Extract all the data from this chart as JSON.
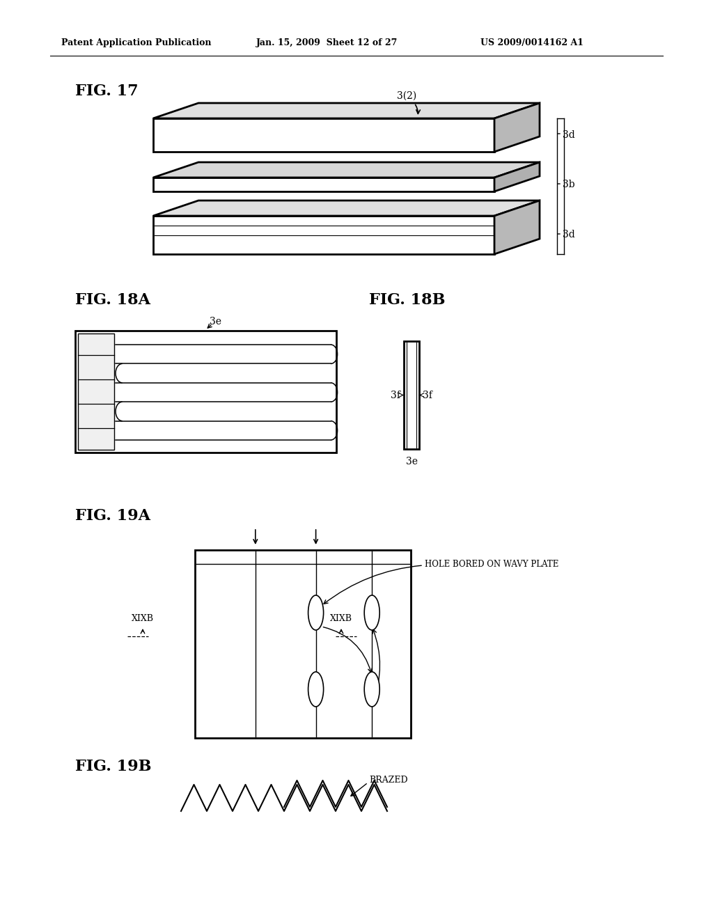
{
  "bg_color": "#ffffff",
  "text_color": "#000000",
  "header_left": "Patent Application Publication",
  "header_mid": "Jan. 15, 2009  Sheet 12 of 27",
  "header_right": "US 2009/0014162 A1",
  "fig17_label": "FIG. 17",
  "fig18a_label": "FIG. 18A",
  "fig18b_label": "FIG. 18B",
  "fig19a_label": "FIG. 19A",
  "fig19b_label": "FIG. 19B"
}
